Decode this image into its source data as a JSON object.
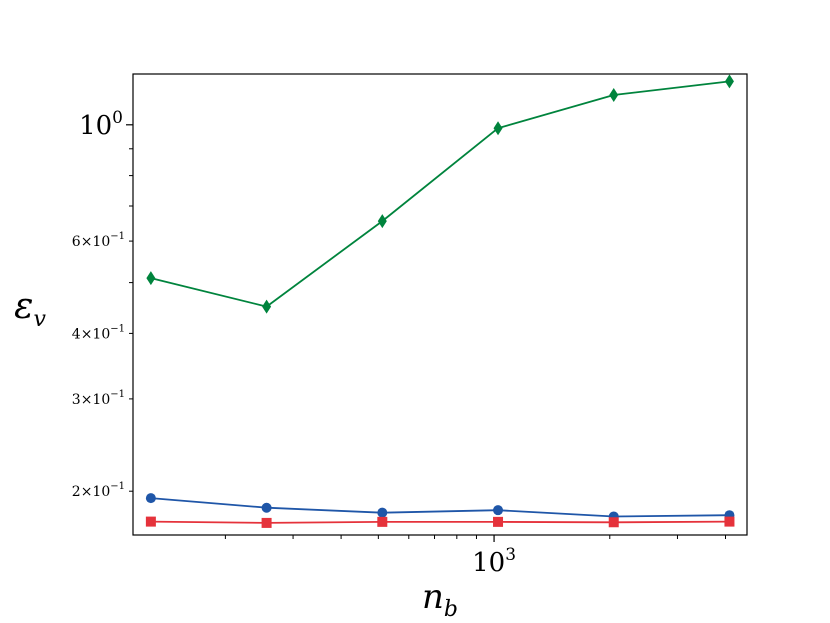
{
  "chart_data": {
    "type": "line",
    "title": "",
    "xlabel": "n_b",
    "ylabel": "ε_v",
    "xscale": "log",
    "yscale": "log",
    "xlim": [
      115,
      4550
    ],
    "ylim": [
      0.165,
      1.25
    ],
    "grid": false,
    "legend": "none",
    "x": [
      128,
      256,
      512,
      1024,
      2048,
      4096
    ],
    "x_ticks": [
      {
        "value": 1000,
        "base": "10",
        "exp": "3"
      }
    ],
    "y_ticks": [
      {
        "value": 0.2,
        "coef": "2",
        "base": "10",
        "exp": "−1"
      },
      {
        "value": 0.3,
        "coef": "3",
        "base": "10",
        "exp": "−1"
      },
      {
        "value": 0.4,
        "coef": "4",
        "base": "10",
        "exp": "−1"
      },
      {
        "value": 0.6,
        "coef": "6",
        "base": "10",
        "exp": "−1"
      },
      {
        "value": 1.0,
        "coef": "",
        "base": "10",
        "exp": "0"
      }
    ],
    "series": [
      {
        "color": "#00843d",
        "marker": "diamond",
        "values": [
          0.51,
          0.45,
          0.655,
          0.985,
          1.14,
          1.21
        ]
      },
      {
        "color": "#1f56a8",
        "marker": "circle",
        "values": [
          0.194,
          0.186,
          0.182,
          0.184,
          0.179,
          0.18
        ]
      },
      {
        "color": "#e5323b",
        "marker": "square",
        "values": [
          0.175,
          0.174,
          0.1748,
          0.1748,
          0.1745,
          0.175
        ]
      }
    ]
  }
}
